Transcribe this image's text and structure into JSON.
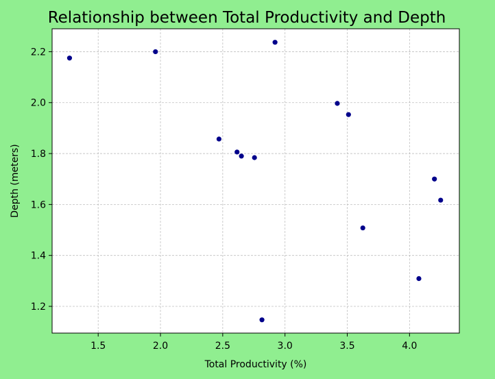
{
  "chart_data": {
    "type": "scatter",
    "title": "Relationship between Total Productivity and Depth",
    "xlabel": "Total Productivity (%)",
    "ylabel": "Depth (meters)",
    "xlim": [
      1.13,
      4.4
    ],
    "ylim": [
      1.095,
      2.29
    ],
    "xticks": [
      1.5,
      2.0,
      2.5,
      3.0,
      3.5,
      4.0
    ],
    "xtick_labels": [
      "1.5",
      "2.0",
      "2.5",
      "3.0",
      "3.5",
      "4.0"
    ],
    "yticks": [
      1.2,
      1.4,
      1.6,
      1.8,
      2.0,
      2.2
    ],
    "ytick_labels": [
      "1.2",
      "1.4",
      "1.6",
      "1.8",
      "2.0",
      "2.2"
    ],
    "grid": true,
    "marker_color": "#00008b",
    "points": [
      {
        "x": 1.27,
        "y": 2.175
      },
      {
        "x": 1.96,
        "y": 2.2
      },
      {
        "x": 2.92,
        "y": 2.237
      },
      {
        "x": 2.47,
        "y": 1.857
      },
      {
        "x": 2.615,
        "y": 1.806
      },
      {
        "x": 2.65,
        "y": 1.79
      },
      {
        "x": 2.755,
        "y": 1.784
      },
      {
        "x": 3.42,
        "y": 1.997
      },
      {
        "x": 3.51,
        "y": 1.953
      },
      {
        "x": 4.2,
        "y": 1.7
      },
      {
        "x": 4.25,
        "y": 1.617
      },
      {
        "x": 3.625,
        "y": 1.508
      },
      {
        "x": 4.075,
        "y": 1.309
      },
      {
        "x": 2.815,
        "y": 1.147
      }
    ]
  }
}
